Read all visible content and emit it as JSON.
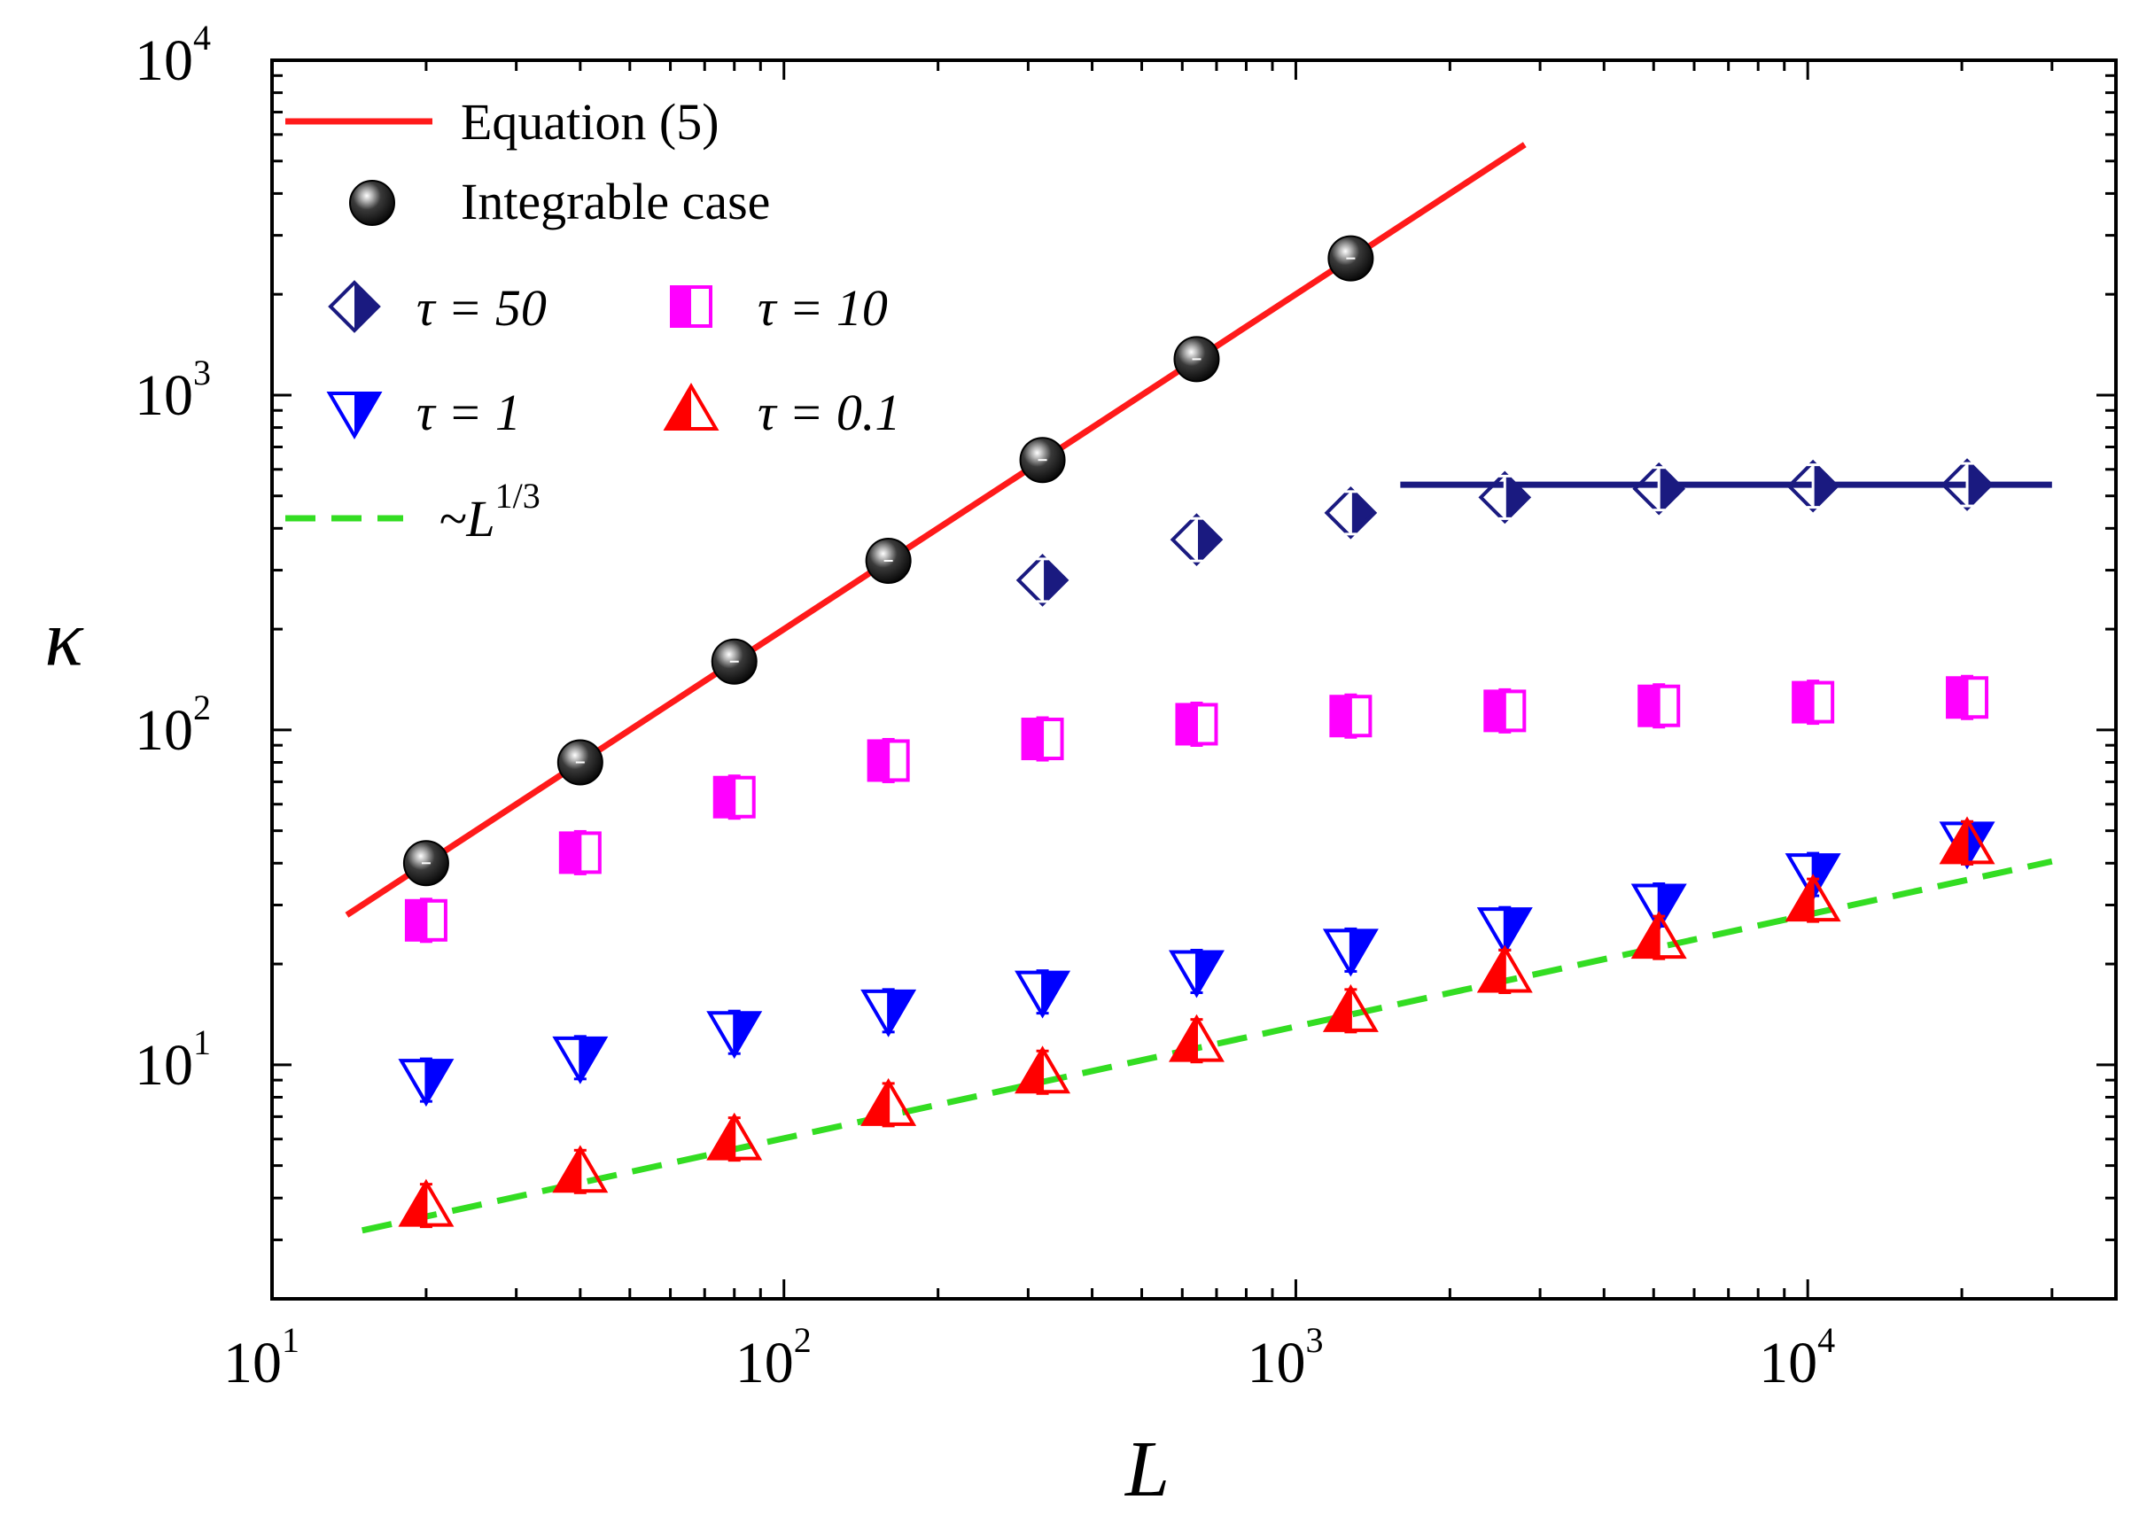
{
  "chart_data": {
    "type": "scatter",
    "xscale": "log",
    "yscale": "log",
    "xlim": [
      10,
      40000
    ],
    "ylim": [
      2,
      10000
    ],
    "xlabel": "L",
    "ylabel": "κ",
    "x_ticks": [
      {
        "value": 10,
        "base": "10",
        "exp": "1"
      },
      {
        "value": 100,
        "base": "10",
        "exp": "2"
      },
      {
        "value": 1000,
        "base": "10",
        "exp": "3"
      },
      {
        "value": 10000,
        "base": "10",
        "exp": "4"
      }
    ],
    "y_ticks": [
      {
        "value": 10,
        "base": "10",
        "exp": "1"
      },
      {
        "value": 100,
        "base": "10",
        "exp": "2"
      },
      {
        "value": 1000,
        "base": "10",
        "exp": "3"
      },
      {
        "value": 10000,
        "base": "10",
        "exp": "4"
      }
    ],
    "legend": {
      "equation": "Equation (5)",
      "integrable": "Integrable case",
      "tau50": "τ = 50",
      "tau10": "τ = 10",
      "tau1": "τ = 1",
      "tau01": "τ = 0.1",
      "power_prefix": "~L",
      "power_exp": "1/3"
    },
    "lines": [
      {
        "name": "Equation (5)",
        "color": "#ff1a1a",
        "style": "solid",
        "x": [
          14,
          2800
        ],
        "y": [
          28,
          5600
        ]
      },
      {
        "name": "~L^1/3",
        "color": "#33dd22",
        "style": "dashed",
        "x": [
          15,
          30000
        ],
        "y": [
          3.2,
          40.5
        ]
      },
      {
        "name": "τ = 50 plateau",
        "color": "#1a1a80",
        "style": "solid",
        "x": [
          1600,
          30000
        ],
        "y": [
          540,
          540
        ]
      }
    ],
    "series": [
      {
        "name": "Integrable case",
        "marker": "sphere",
        "color": "#111111",
        "x": [
          20,
          40,
          80,
          160,
          320,
          640,
          1280
        ],
        "y": [
          40,
          80,
          160,
          320,
          640,
          1280,
          2560
        ]
      },
      {
        "name": "τ = 50",
        "marker": "diamond-half",
        "color": "#1a1a80",
        "x": [
          320,
          640,
          1280,
          2560,
          5120,
          10240,
          20480
        ],
        "y": [
          280,
          370,
          445,
          495,
          525,
          535,
          540
        ]
      },
      {
        "name": "τ = 10",
        "marker": "square-half",
        "color": "#ff00ff",
        "x": [
          20,
          40,
          80,
          160,
          320,
          640,
          1280,
          2560,
          5120,
          10240,
          20480
        ],
        "y": [
          27,
          43,
          63,
          81,
          94,
          104,
          110,
          114,
          118,
          121,
          125
        ]
      },
      {
        "name": "τ = 1",
        "marker": "triangle-down-half",
        "color": "#0000ff",
        "x": [
          20,
          40,
          80,
          160,
          320,
          640,
          1280,
          2560,
          5120,
          10240,
          20480
        ],
        "y": [
          9,
          10.5,
          12.5,
          14.5,
          16.5,
          19,
          22,
          25.5,
          30,
          37,
          46
        ]
      },
      {
        "name": "τ = 0.1",
        "marker": "triangle-up-half",
        "color": "#ff0000",
        "x": [
          20,
          40,
          80,
          160,
          320,
          640,
          1280,
          2560,
          5120,
          10240,
          20480
        ],
        "y": [
          3.8,
          4.8,
          6,
          7.6,
          9.5,
          11.8,
          14.5,
          19,
          24,
          31,
          46
        ]
      }
    ]
  }
}
